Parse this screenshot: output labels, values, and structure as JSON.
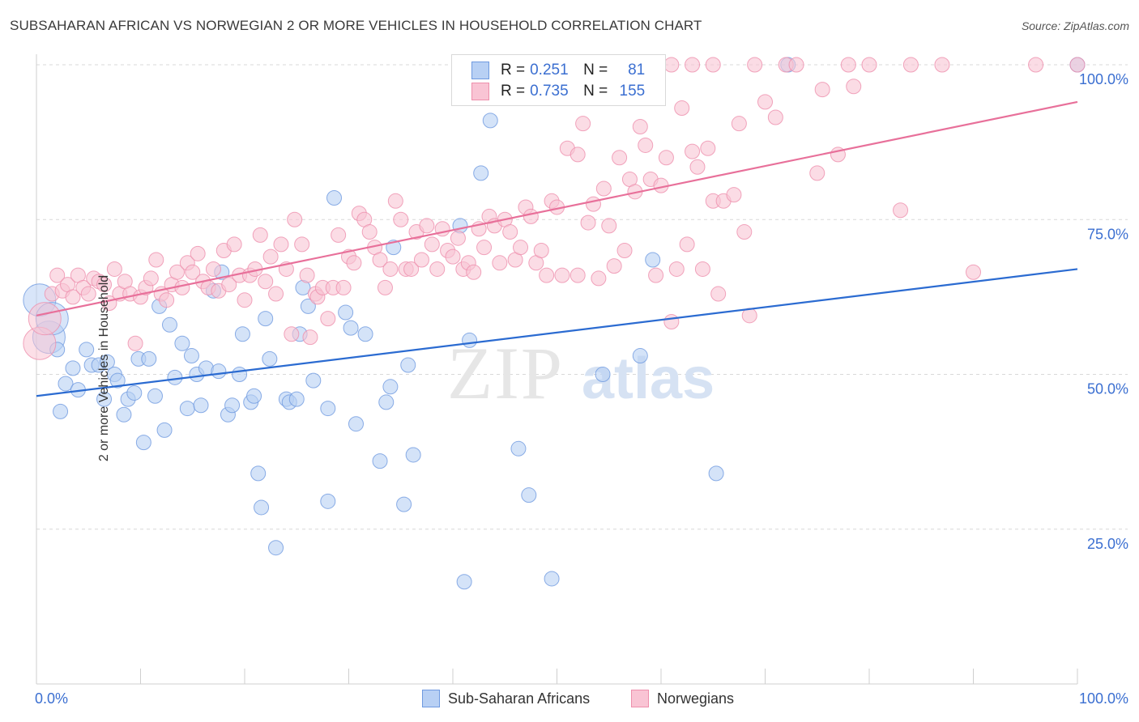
{
  "header": {
    "title": "SUBSAHARAN AFRICAN VS NORWEGIAN 2 OR MORE VEHICLES IN HOUSEHOLD CORRELATION CHART",
    "source": "Source: ZipAtlas.com"
  },
  "legend": {
    "r_label": "R =",
    "n_label": "N =",
    "rows": [
      {
        "r": "0.251",
        "n": "81",
        "fill": "#b8d0f4",
        "stroke": "#6f9ae0"
      },
      {
        "r": "0.735",
        "n": "155",
        "fill": "#f9c4d4",
        "stroke": "#ee8fac"
      }
    ]
  },
  "chart_data": {
    "type": "scatter",
    "title": "SUBSAHARAN AFRICAN VS NORWEGIAN 2 OR MORE VEHICLES IN HOUSEHOLD CORRELATION CHART",
    "ylabel": "2 or more Vehicles in Household",
    "xlim": [
      0,
      100
    ],
    "ylim": [
      0,
      100
    ],
    "x_tick_labels": [
      "0.0%",
      "100.0%"
    ],
    "y_tick_labels": [
      "25.0%",
      "50.0%",
      "75.0%",
      "100.0%"
    ],
    "y_ticks": [
      25,
      50,
      75,
      100
    ],
    "grid": "horizontal dashed",
    "legend_placement": "bottom",
    "watermark": "ZIPatlas",
    "series": [
      {
        "name": "Sub-Saharan Africans",
        "color": "#6f9ae0",
        "fill": "#b8d0f4",
        "trend_color": "#2b6bd1",
        "trend": {
          "x": [
            0,
            100
          ],
          "y": [
            46.5,
            67
          ]
        },
        "points": [
          [
            0.3,
            62
          ],
          [
            1.2,
            56
          ],
          [
            2,
            54
          ],
          [
            1.5,
            59
          ],
          [
            2.3,
            44
          ],
          [
            2.8,
            48.5
          ],
          [
            3.5,
            51
          ],
          [
            4,
            47.5
          ],
          [
            4.8,
            54
          ],
          [
            5.3,
            51.5
          ],
          [
            6,
            51.5
          ],
          [
            6.5,
            46
          ],
          [
            6.8,
            52
          ],
          [
            7.5,
            50
          ],
          [
            7.8,
            49
          ],
          [
            8.4,
            43.5
          ],
          [
            8.8,
            46
          ],
          [
            9.4,
            47
          ],
          [
            9.8,
            52.5
          ],
          [
            10.3,
            39
          ],
          [
            10.8,
            52.5
          ],
          [
            11.4,
            46.5
          ],
          [
            11.8,
            61
          ],
          [
            12.3,
            41
          ],
          [
            12.8,
            58
          ],
          [
            13.3,
            49.5
          ],
          [
            14,
            55
          ],
          [
            14.5,
            44.5
          ],
          [
            14.9,
            53
          ],
          [
            15.4,
            50
          ],
          [
            15.8,
            45
          ],
          [
            16.3,
            51
          ],
          [
            17,
            63.5
          ],
          [
            17.5,
            50.5
          ],
          [
            17.8,
            66.5
          ],
          [
            18.4,
            43.5
          ],
          [
            18.8,
            45
          ],
          [
            19.5,
            50
          ],
          [
            19.8,
            56.5
          ],
          [
            20.6,
            45.5
          ],
          [
            20.9,
            46.5
          ],
          [
            21.3,
            34
          ],
          [
            21.6,
            28.5
          ],
          [
            22,
            59
          ],
          [
            22.4,
            52.5
          ],
          [
            23,
            22
          ],
          [
            24,
            46
          ],
          [
            24.3,
            45.5
          ],
          [
            25,
            46
          ],
          [
            25.3,
            56.5
          ],
          [
            25.6,
            64
          ],
          [
            26.1,
            61
          ],
          [
            26.6,
            49
          ],
          [
            28,
            44.5
          ],
          [
            28,
            29.5
          ],
          [
            28.6,
            78.5
          ],
          [
            29.7,
            60
          ],
          [
            30.2,
            57.5
          ],
          [
            30.7,
            42
          ],
          [
            31.6,
            56.5
          ],
          [
            33,
            36
          ],
          [
            33.6,
            45.5
          ],
          [
            34,
            48
          ],
          [
            34.3,
            70.5
          ],
          [
            35.3,
            29
          ],
          [
            35.7,
            51.5
          ],
          [
            36.2,
            37
          ],
          [
            40.7,
            74
          ],
          [
            41.1,
            16.5
          ],
          [
            41.6,
            55.5
          ],
          [
            42.7,
            82.5
          ],
          [
            43.6,
            91
          ],
          [
            46.3,
            38
          ],
          [
            47.3,
            30.5
          ],
          [
            49.5,
            17
          ],
          [
            54.4,
            50
          ],
          [
            58,
            53
          ],
          [
            59.2,
            68.5
          ],
          [
            65.3,
            34
          ],
          [
            72.2,
            100
          ],
          [
            100,
            100
          ]
        ],
        "large_points": [
          [
            0.3,
            62
          ],
          [
            1.2,
            56
          ],
          [
            1.5,
            59
          ]
        ]
      },
      {
        "name": "Norwegians",
        "color": "#ee8fac",
        "fill": "#f9c4d4",
        "trend_color": "#e8709a",
        "trend": {
          "x": [
            0,
            100
          ],
          "y": [
            59.5,
            94
          ]
        },
        "points": [
          [
            0.3,
            55
          ],
          [
            0.8,
            59
          ],
          [
            1.5,
            63
          ],
          [
            2,
            66
          ],
          [
            2.5,
            63.5
          ],
          [
            3,
            64.5
          ],
          [
            3.5,
            62.5
          ],
          [
            4,
            66
          ],
          [
            4.5,
            64
          ],
          [
            5,
            63
          ],
          [
            5.5,
            65.5
          ],
          [
            6,
            65
          ],
          [
            6.5,
            64.5
          ],
          [
            7,
            61.5
          ],
          [
            7.5,
            67
          ],
          [
            8,
            63
          ],
          [
            8.5,
            65
          ],
          [
            9,
            63
          ],
          [
            9.5,
            55
          ],
          [
            10,
            62.5
          ],
          [
            10.5,
            64
          ],
          [
            11,
            65.5
          ],
          [
            11.5,
            68.5
          ],
          [
            12,
            63
          ],
          [
            12.5,
            62
          ],
          [
            13,
            64.5
          ],
          [
            13.5,
            66.5
          ],
          [
            14,
            64
          ],
          [
            14.5,
            68
          ],
          [
            15,
            66.5
          ],
          [
            15.5,
            69.5
          ],
          [
            16,
            65
          ],
          [
            16.5,
            64
          ],
          [
            17,
            67
          ],
          [
            17.5,
            63.5
          ],
          [
            18,
            70
          ],
          [
            18.5,
            64.5
          ],
          [
            19,
            71
          ],
          [
            19.5,
            66
          ],
          [
            20,
            62
          ],
          [
            20.5,
            66
          ],
          [
            21,
            67
          ],
          [
            21.5,
            72.5
          ],
          [
            22,
            65
          ],
          [
            22.5,
            69
          ],
          [
            23,
            63
          ],
          [
            23.5,
            71
          ],
          [
            24,
            67
          ],
          [
            24.5,
            56.5
          ],
          [
            24.8,
            75
          ],
          [
            25.5,
            71
          ],
          [
            26,
            66
          ],
          [
            26.3,
            56
          ],
          [
            26.8,
            63
          ],
          [
            27,
            62.5
          ],
          [
            27.5,
            64
          ],
          [
            28,
            59
          ],
          [
            28.5,
            64
          ],
          [
            29,
            72.5
          ],
          [
            29.5,
            64
          ],
          [
            30,
            69
          ],
          [
            30.5,
            68
          ],
          [
            31,
            76
          ],
          [
            31.5,
            75
          ],
          [
            32,
            73
          ],
          [
            32.5,
            70.5
          ],
          [
            33,
            68.5
          ],
          [
            33.5,
            64
          ],
          [
            34,
            67
          ],
          [
            34.5,
            78
          ],
          [
            35,
            75
          ],
          [
            35.5,
            67
          ],
          [
            36,
            67
          ],
          [
            36.5,
            73
          ],
          [
            37,
            68.5
          ],
          [
            37.5,
            74
          ],
          [
            38,
            71
          ],
          [
            38.5,
            67
          ],
          [
            39,
            73.5
          ],
          [
            39.5,
            70
          ],
          [
            40,
            69
          ],
          [
            40.5,
            72
          ],
          [
            41,
            67
          ],
          [
            41.5,
            68
          ],
          [
            42,
            66.5
          ],
          [
            42.5,
            73.5
          ],
          [
            43,
            70.5
          ],
          [
            43.5,
            75.5
          ],
          [
            44,
            74
          ],
          [
            44.5,
            68
          ],
          [
            45,
            75
          ],
          [
            45.5,
            73
          ],
          [
            46,
            68.5
          ],
          [
            46.5,
            70.5
          ],
          [
            47,
            77
          ],
          [
            47.5,
            75.5
          ],
          [
            48,
            68
          ],
          [
            48.5,
            70
          ],
          [
            49,
            66
          ],
          [
            49.5,
            78
          ],
          [
            50,
            77
          ],
          [
            50.5,
            66
          ],
          [
            51,
            86.5
          ],
          [
            52,
            85.5
          ],
          [
            52,
            66
          ],
          [
            52.5,
            90.5
          ],
          [
            53,
            74.5
          ],
          [
            53.5,
            77.5
          ],
          [
            54,
            65.5
          ],
          [
            54.5,
            80
          ],
          [
            55,
            74
          ],
          [
            55.5,
            67.5
          ],
          [
            56,
            85
          ],
          [
            56.5,
            70
          ],
          [
            57,
            81.5
          ],
          [
            57.5,
            79.5
          ],
          [
            58,
            90
          ],
          [
            58.5,
            87
          ],
          [
            59,
            81.5
          ],
          [
            59.5,
            66
          ],
          [
            60,
            80.5
          ],
          [
            60.5,
            85
          ],
          [
            61,
            58.5
          ],
          [
            61.5,
            67
          ],
          [
            62,
            93
          ],
          [
            62.5,
            71
          ],
          [
            63,
            86
          ],
          [
            63.5,
            83.5
          ],
          [
            64,
            67
          ],
          [
            64.5,
            86.5
          ],
          [
            65,
            78
          ],
          [
            65.5,
            63
          ],
          [
            66,
            78
          ],
          [
            67,
            79
          ],
          [
            67.5,
            90.5
          ],
          [
            68,
            73
          ],
          [
            68.5,
            59.5
          ],
          [
            69,
            100
          ],
          [
            70,
            94
          ],
          [
            71,
            91.5
          ],
          [
            72,
            100
          ],
          [
            73,
            100
          ],
          [
            75,
            82.5
          ],
          [
            75.5,
            96
          ],
          [
            77,
            85.5
          ],
          [
            78,
            100
          ],
          [
            78.5,
            96.5
          ],
          [
            80,
            100
          ],
          [
            83,
            76.5
          ],
          [
            84,
            100
          ],
          [
            87,
            100
          ],
          [
            90,
            66.5
          ],
          [
            96,
            100
          ],
          [
            100,
            100
          ],
          [
            61,
            100
          ],
          [
            63,
            100
          ],
          [
            65,
            100
          ]
        ],
        "large_points": [
          [
            0.3,
            55
          ],
          [
            0.8,
            59
          ]
        ]
      }
    ]
  },
  "bottom_legend": [
    {
      "label": "Sub-Saharan Africans",
      "fill": "#b8d0f4",
      "stroke": "#6f9ae0"
    },
    {
      "label": "Norwegians",
      "fill": "#f9c4d4",
      "stroke": "#ee8fac"
    }
  ]
}
